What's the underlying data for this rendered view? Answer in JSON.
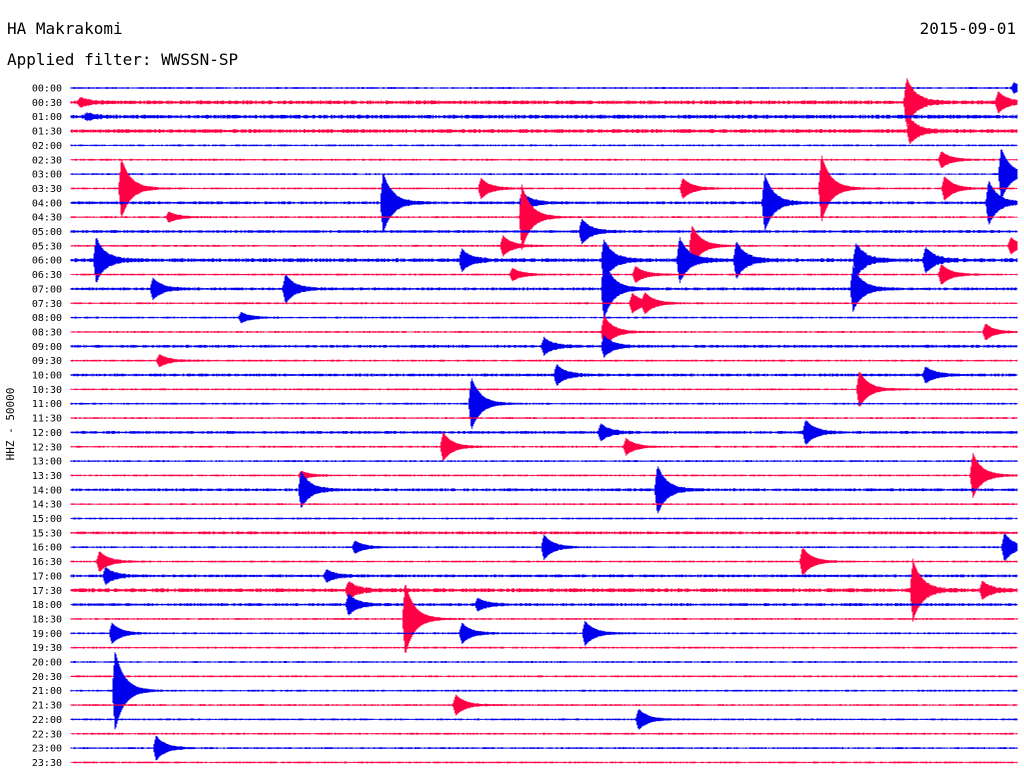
{
  "header": {
    "station": "HA Makrakomi",
    "date": "2015-09-01",
    "filter": "Applied filter: WWSSN-SP"
  },
  "chart_data": {
    "type": "line",
    "subtype": "helicorder",
    "ylabel": "HHZ - 50000",
    "colors": [
      "#0000ee",
      "#ff0044"
    ],
    "tick_labels": [
      "00:00",
      "00:30",
      "01:00",
      "01:30",
      "02:00",
      "02:30",
      "03:00",
      "03:30",
      "04:00",
      "04:30",
      "05:00",
      "05:30",
      "06:00",
      "06:30",
      "07:00",
      "07:30",
      "08:00",
      "08:30",
      "09:00",
      "09:30",
      "10:00",
      "10:30",
      "11:00",
      "11:30",
      "12:00",
      "12:30",
      "13:00",
      "13:30",
      "14:00",
      "14:30",
      "15:00",
      "15:30",
      "16:00",
      "16:30",
      "17:00",
      "17:30",
      "18:00",
      "18:30",
      "19:00",
      "19:30",
      "20:00",
      "20:30",
      "21:00",
      "21:30",
      "22:00",
      "22:30",
      "23:00",
      "23:30"
    ],
    "x_unit": "minutes after row start (0-30)",
    "noise": [
      1,
      2,
      2,
      2,
      1,
      1,
      1,
      1,
      1.5,
      1,
      1.5,
      1,
      2,
      1,
      1.5,
      1,
      1,
      1,
      1.5,
      1,
      1.5,
      1,
      1,
      1,
      1.5,
      1,
      1,
      1,
      1.5,
      1,
      1,
      1.5,
      1,
      1,
      1.5,
      2,
      1.5,
      1,
      1,
      1,
      1,
      1,
      1,
      1,
      1,
      1,
      1,
      1
    ],
    "events": [
      {
        "row": 0,
        "x": 29.9,
        "amp": 5
      },
      {
        "row": 1,
        "x": 0.3,
        "amp": 4
      },
      {
        "row": 1,
        "x": 26.5,
        "amp": 24
      },
      {
        "row": 1,
        "x": 29.4,
        "amp": 10
      },
      {
        "row": 2,
        "x": 0.5,
        "amp": 3
      },
      {
        "row": 3,
        "x": 26.6,
        "amp": 12
      },
      {
        "row": 5,
        "x": 27.6,
        "amp": 8
      },
      {
        "row": 6,
        "x": 29.5,
        "amp": 26
      },
      {
        "row": 7,
        "x": 1.6,
        "amp": 30
      },
      {
        "row": 7,
        "x": 13.0,
        "amp": 10
      },
      {
        "row": 7,
        "x": 19.4,
        "amp": 10
      },
      {
        "row": 7,
        "x": 23.8,
        "amp": 34
      },
      {
        "row": 7,
        "x": 27.7,
        "amp": 12
      },
      {
        "row": 8,
        "x": 9.9,
        "amp": 30
      },
      {
        "row": 8,
        "x": 14.3,
        "amp": 10
      },
      {
        "row": 8,
        "x": 22.0,
        "amp": 28
      },
      {
        "row": 8,
        "x": 29.1,
        "amp": 22
      },
      {
        "row": 9,
        "x": 3.1,
        "amp": 5
      },
      {
        "row": 9,
        "x": 14.3,
        "amp": 32
      },
      {
        "row": 10,
        "x": 16.2,
        "amp": 12
      },
      {
        "row": 11,
        "x": 13.7,
        "amp": 10
      },
      {
        "row": 11,
        "x": 19.7,
        "amp": 20
      },
      {
        "row": 11,
        "x": 29.8,
        "amp": 8
      },
      {
        "row": 12,
        "x": 0.8,
        "amp": 22
      },
      {
        "row": 12,
        "x": 12.4,
        "amp": 10
      },
      {
        "row": 12,
        "x": 16.9,
        "amp": 20
      },
      {
        "row": 12,
        "x": 19.3,
        "amp": 22
      },
      {
        "row": 12,
        "x": 21.1,
        "amp": 18
      },
      {
        "row": 12,
        "x": 24.9,
        "amp": 16
      },
      {
        "row": 12,
        "x": 27.1,
        "amp": 12
      },
      {
        "row": 13,
        "x": 14.0,
        "amp": 6
      },
      {
        "row": 13,
        "x": 17.9,
        "amp": 8
      },
      {
        "row": 13,
        "x": 27.6,
        "amp": 10
      },
      {
        "row": 14,
        "x": 2.6,
        "amp": 10
      },
      {
        "row": 14,
        "x": 6.8,
        "amp": 14
      },
      {
        "row": 14,
        "x": 16.9,
        "amp": 30
      },
      {
        "row": 14,
        "x": 24.8,
        "amp": 22
      },
      {
        "row": 15,
        "x": 17.8,
        "amp": 10
      },
      {
        "row": 15,
        "x": 18.2,
        "amp": 8
      },
      {
        "row": 16,
        "x": 5.4,
        "amp": 5
      },
      {
        "row": 17,
        "x": 16.9,
        "amp": 16
      },
      {
        "row": 17,
        "x": 29.0,
        "amp": 8
      },
      {
        "row": 18,
        "x": 15.0,
        "amp": 8
      },
      {
        "row": 18,
        "x": 16.9,
        "amp": 10
      },
      {
        "row": 19,
        "x": 2.8,
        "amp": 6
      },
      {
        "row": 20,
        "x": 15.4,
        "amp": 10
      },
      {
        "row": 20,
        "x": 27.1,
        "amp": 8
      },
      {
        "row": 21,
        "x": 25.0,
        "amp": 18
      },
      {
        "row": 22,
        "x": 12.7,
        "amp": 26
      },
      {
        "row": 24,
        "x": 16.8,
        "amp": 8
      },
      {
        "row": 24,
        "x": 23.3,
        "amp": 12
      },
      {
        "row": 25,
        "x": 11.8,
        "amp": 14
      },
      {
        "row": 25,
        "x": 17.6,
        "amp": 8
      },
      {
        "row": 27,
        "x": 7.3,
        "amp": 4
      },
      {
        "row": 27,
        "x": 28.6,
        "amp": 22
      },
      {
        "row": 28,
        "x": 7.3,
        "amp": 18
      },
      {
        "row": 28,
        "x": 18.6,
        "amp": 24
      },
      {
        "row": 32,
        "x": 9.0,
        "amp": 6
      },
      {
        "row": 32,
        "x": 15.0,
        "amp": 12
      },
      {
        "row": 32,
        "x": 29.6,
        "amp": 14
      },
      {
        "row": 33,
        "x": 0.9,
        "amp": 10
      },
      {
        "row": 33,
        "x": 23.2,
        "amp": 14
      },
      {
        "row": 34,
        "x": 1.1,
        "amp": 8
      },
      {
        "row": 34,
        "x": 8.1,
        "amp": 6
      },
      {
        "row": 35,
        "x": 8.8,
        "amp": 8
      },
      {
        "row": 35,
        "x": 26.7,
        "amp": 30
      },
      {
        "row": 35,
        "x": 28.9,
        "amp": 8
      },
      {
        "row": 36,
        "x": 8.8,
        "amp": 10
      },
      {
        "row": 36,
        "x": 12.9,
        "amp": 6
      },
      {
        "row": 37,
        "x": 10.6,
        "amp": 36
      },
      {
        "row": 38,
        "x": 1.3,
        "amp": 10
      },
      {
        "row": 38,
        "x": 12.4,
        "amp": 10
      },
      {
        "row": 38,
        "x": 16.3,
        "amp": 12
      },
      {
        "row": 42,
        "x": 1.4,
        "amp": 40
      },
      {
        "row": 43,
        "x": 12.2,
        "amp": 10
      },
      {
        "row": 44,
        "x": 18.0,
        "amp": 10
      },
      {
        "row": 46,
        "x": 2.7,
        "amp": 12
      }
    ]
  }
}
